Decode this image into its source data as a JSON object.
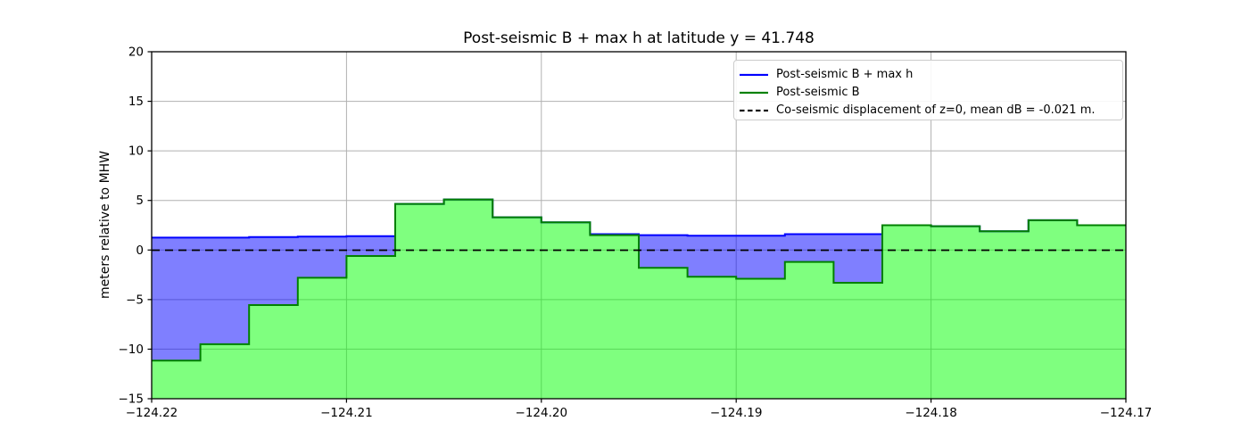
{
  "figure": {
    "background": "#ffffff"
  },
  "chart_data": {
    "type": "area",
    "subtype": "step-filled-transect",
    "title": "Post-seismic B + max h at latitude y = 41.748",
    "xlabel": "",
    "ylabel": "meters relative to MHW",
    "xlim": [
      -124.22,
      -124.17
    ],
    "ylim": [
      -15,
      20
    ],
    "grid": true,
    "grid_color": "#b0b0b0",
    "axis_color": "#000000",
    "xticks": {
      "values": [
        -124.22,
        -124.21,
        -124.2,
        -124.19,
        -124.18,
        -124.17
      ],
      "labels": [
        "−124.22",
        "−124.21",
        "−124.20",
        "−124.19",
        "−124.18",
        "−124.17"
      ]
    },
    "yticks": {
      "values": [
        -15,
        -10,
        -5,
        0,
        5,
        10,
        15,
        20
      ],
      "labels": [
        "−15",
        "−10",
        "−5",
        "0",
        "5",
        "10",
        "15",
        "20"
      ]
    },
    "step_edges": [
      -124.22,
      -124.2175,
      -124.215,
      -124.2125,
      -124.21,
      -124.2075,
      -124.205,
      -124.2025,
      -124.2,
      -124.1975,
      -124.195,
      -124.1925,
      -124.19,
      -124.1875,
      -124.185,
      -124.1825,
      -124.18,
      -124.1775,
      -124.175,
      -124.1725,
      -124.17
    ],
    "series": [
      {
        "name": "Post-seismic B + max h",
        "line_color": "#0000ff",
        "fill_color": "rgba(0,0,255,0.5)",
        "fill_to": "series-below",
        "values": [
          1.25,
          1.25,
          1.3,
          1.35,
          1.4,
          4.65,
          5.1,
          3.3,
          2.8,
          1.6,
          1.5,
          1.45,
          1.45,
          1.6,
          1.6,
          2.5,
          2.4,
          1.9,
          3.0,
          2.5
        ]
      },
      {
        "name": "Post-seismic B",
        "line_color": "#008000",
        "fill_color": "rgba(0,255,0,0.5)",
        "fill_to": "bottom",
        "values": [
          -11.15,
          -9.5,
          -5.55,
          -2.8,
          -0.6,
          4.65,
          5.1,
          3.3,
          2.8,
          1.5,
          -1.8,
          -2.7,
          -2.9,
          -1.2,
          -3.3,
          2.5,
          2.4,
          1.9,
          3.0,
          2.5
        ]
      }
    ],
    "hline": {
      "y": -0.021,
      "color": "#000000",
      "style": "dashed",
      "label": "Co-seismic displacement of z=0, mean dB = -0.021 m."
    },
    "legend": {
      "position": "upper right",
      "entries": [
        {
          "label": "Post-seismic B + max h",
          "color": "#0000ff",
          "style": "solid"
        },
        {
          "label": "Post-seismic B",
          "color": "#008000",
          "style": "solid"
        },
        {
          "label": "Co-seismic displacement of z=0, mean dB = -0.021 m.",
          "color": "#000000",
          "style": "dashed"
        }
      ]
    }
  }
}
